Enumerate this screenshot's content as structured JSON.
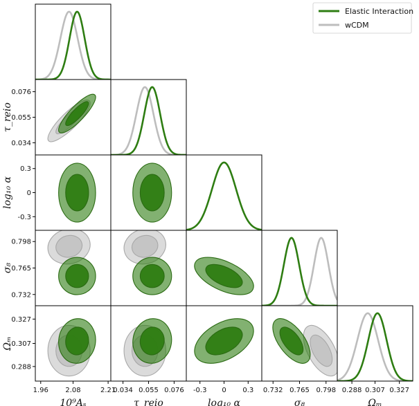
{
  "chart_data": {
    "type": "triangle-corner",
    "parameters": [
      {
        "key": "As",
        "label": "10⁹Aₛ",
        "ticks": [
          "1.96",
          "2.08",
          "2.21"
        ],
        "tick_values": [
          1.96,
          2.08,
          2.21
        ],
        "range": [
          1.94,
          2.22
        ]
      },
      {
        "key": "tau",
        "label": "τ_reio",
        "ticks": [
          "0.034",
          "0.055",
          "0.076"
        ],
        "tick_values": [
          0.034,
          0.055,
          0.076
        ],
        "range": [
          0.024,
          0.086
        ]
      },
      {
        "key": "alpha",
        "label": "log₁₀ α",
        "ticks": [
          "-0.3",
          "0",
          "0.3"
        ],
        "tick_values": [
          -0.3,
          0,
          0.3
        ],
        "range": [
          -0.47,
          0.47
        ]
      },
      {
        "key": "s8",
        "label": "σ₈",
        "ticks": [
          "0.732",
          "0.765",
          "0.798"
        ],
        "tick_values": [
          0.732,
          0.765,
          0.798
        ],
        "range": [
          0.718,
          0.812
        ]
      },
      {
        "key": "om",
        "label": "Ωₘ",
        "ticks": [
          "0.288",
          "0.307",
          "0.327"
        ],
        "tick_values": [
          0.288,
          0.307,
          0.327
        ],
        "range": [
          0.276,
          0.338
        ]
      }
    ],
    "series": [
      {
        "name": "Elastic Interaction",
        "color": "#2e7d12",
        "mean": {
          "As": 2.095,
          "tau": 0.058,
          "alpha": 0.0,
          "s8": 0.755,
          "om": 0.309
        },
        "sigma": {
          "As": 0.028,
          "tau": 0.0065,
          "alpha": 0.15,
          "s8": 0.0095,
          "om": 0.0075
        },
        "corr": {
          "As-tau": 0.85,
          "As-alpha": 0.0,
          "As-s8": 0.0,
          "As-om": 0.05,
          "tau-alpha": 0.0,
          "tau-s8": 0.0,
          "tau-om": 0.05,
          "alpha-s8": -0.55,
          "alpha-om": 0.45,
          "s8-om": -0.6
        }
      },
      {
        "name": "wCDM",
        "color": "#bdbdbd",
        "mean": {
          "As": 2.065,
          "tau": 0.052,
          "s8": 0.792,
          "om": 0.301
        },
        "sigma": {
          "As": 0.032,
          "tau": 0.007,
          "s8": 0.009,
          "om": 0.0085
        },
        "corr": {
          "As-tau": 0.85,
          "As-s8": 0.1,
          "As-om": 0.0,
          "tau-s8": 0.1,
          "tau-om": 0.0,
          "s8-om": -0.55
        }
      }
    ],
    "legend": {
      "position": "top-right",
      "entries": [
        "Elastic Interaction",
        "wCDM"
      ]
    },
    "contour_levels": [
      "68%",
      "95%"
    ]
  }
}
